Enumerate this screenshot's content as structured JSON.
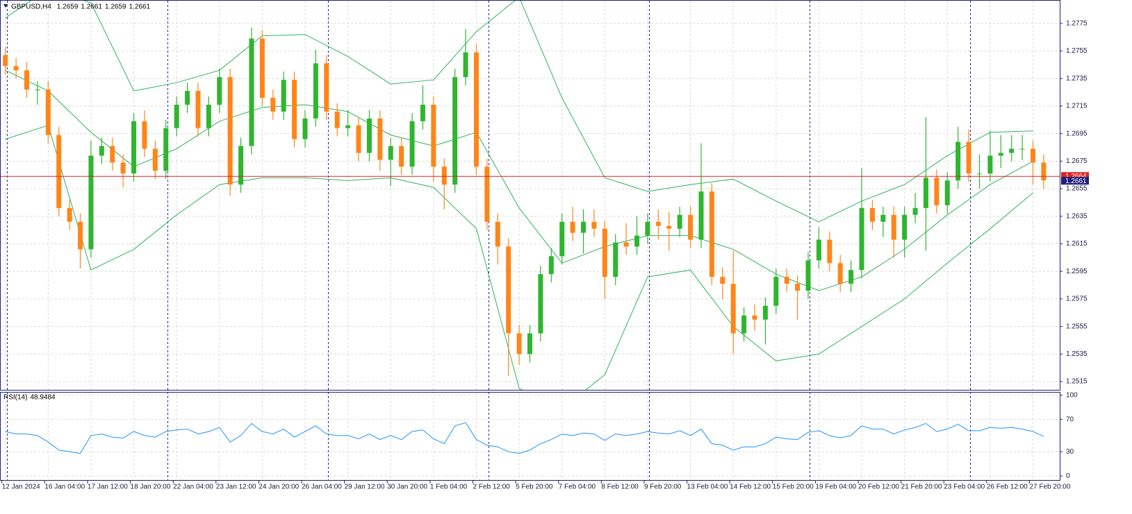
{
  "chart_data": [
    {
      "type": "candlestick",
      "title": "GBPUSD,H4",
      "ohlc_header": [
        1.2659,
        1.2661,
        1.2659,
        1.2661
      ],
      "xlim": [
        -0.5,
        98.5
      ],
      "ylim": [
        1.2509,
        1.2791
      ],
      "yticks": [
        1.2775,
        1.2755,
        1.2735,
        1.2715,
        1.2695,
        1.2675,
        1.2655,
        1.2635,
        1.2615,
        1.2595,
        1.2575,
        1.2555,
        1.2535,
        1.2515
      ],
      "xticks": [
        {
          "value": 0,
          "label": "12 Jan 2024"
        },
        {
          "value": 4,
          "label": "16 Jan 04:00"
        },
        {
          "value": 8,
          "label": "17 Jan 12:00"
        },
        {
          "value": 12,
          "label": "18 Jan 20:00"
        },
        {
          "value": 16,
          "label": "22 Jan 04:00"
        },
        {
          "value": 20,
          "label": "23 Jan 12:00"
        },
        {
          "value": 24,
          "label": "24 Jan 20:00"
        },
        {
          "value": 28,
          "label": "26 Jan 04:00"
        },
        {
          "value": 32,
          "label": "29 Jan 12:00"
        },
        {
          "value": 36,
          "label": "30 Jan 20:00"
        },
        {
          "value": 40,
          "label": "1 Feb 04:00"
        },
        {
          "value": 44,
          "label": "2 Feb 12:00"
        },
        {
          "value": 48,
          "label": "5 Feb 20:00"
        },
        {
          "value": 52,
          "label": "7 Feb 04:00"
        },
        {
          "value": 56,
          "label": "8 Feb 12:00"
        },
        {
          "value": 60,
          "label": "9 Feb 20:00"
        },
        {
          "value": 64,
          "label": "13 Feb 04:00"
        },
        {
          "value": 68,
          "label": "14 Feb 12:00"
        },
        {
          "value": 72,
          "label": "15 Feb 20:00"
        },
        {
          "value": 76,
          "label": "19 Feb 04:00"
        },
        {
          "value": 80,
          "label": "20 Feb 12:00"
        },
        {
          "value": 84,
          "label": "21 Feb 20:00"
        },
        {
          "value": 88,
          "label": "23 Feb 04:00"
        },
        {
          "value": 92,
          "label": "26 Feb 12:00"
        },
        {
          "value": 96,
          "label": "27 Feb 20:00"
        }
      ],
      "grid": true,
      "up_color": "#2fb52f",
      "down_color": "#ff8518",
      "open": [
        1.2752,
        1.2744,
        1.2741,
        1.2727,
        1.2727,
        1.2694,
        1.2641,
        1.2631,
        1.2611,
        1.2679,
        1.2686,
        1.2674,
        1.2666,
        1.2704,
        1.2684,
        1.2668,
        1.2699,
        1.2716,
        1.2726,
        1.2699,
        1.2716,
        1.2736,
        1.2658,
        1.2686,
        1.2764,
        1.2721,
        1.2711,
        1.2734,
        1.2691,
        1.2706,
        1.2746,
        1.2711,
        1.2699,
        1.2701,
        1.2681,
        1.2706,
        1.2676,
        1.2686,
        1.2671,
        1.2704,
        1.2716,
        1.2671,
        1.2658,
        1.2736,
        1.2754,
        1.2671,
        1.2631,
        1.2613,
        1.255,
        1.2535,
        1.255,
        1.2593,
        1.2606,
        1.2631,
        1.2623,
        1.2631,
        1.2626,
        1.2591,
        1.2616,
        1.2613,
        1.2621,
        1.2631,
        1.2628,
        1.2626,
        1.2636,
        1.2618,
        1.2653,
        1.2591,
        1.2586,
        1.255,
        1.2563,
        1.256,
        1.257,
        1.2591,
        1.2586,
        1.2581,
        1.2603,
        1.2618,
        1.2601,
        1.2586,
        1.2596,
        1.2641,
        1.2631,
        1.2636,
        1.2618,
        1.2636,
        1.2641,
        1.2663,
        1.2643,
        1.2661,
        1.2689,
        1.2666,
        1.2666,
        1.2679,
        1.2681,
        1.2684,
        1.2684,
        1.2674
      ],
      "high": [
        1.2758,
        1.275,
        1.2747,
        1.2733,
        1.2733,
        1.27,
        1.2647,
        1.2637,
        1.269,
        1.2692,
        1.2692,
        1.268,
        1.271,
        1.2712,
        1.269,
        1.2705,
        1.2722,
        1.2732,
        1.2732,
        1.2722,
        1.2742,
        1.2742,
        1.2692,
        1.2772,
        1.277,
        1.2727,
        1.274,
        1.274,
        1.2712,
        1.2756,
        1.2752,
        1.2717,
        1.2712,
        1.2707,
        1.2712,
        1.2712,
        1.2692,
        1.2692,
        1.271,
        1.273,
        1.2722,
        1.2677,
        1.2742,
        1.2771,
        1.276,
        1.2677,
        1.2637,
        1.2619,
        1.2556,
        1.2556,
        1.2599,
        1.2612,
        1.2637,
        1.2642,
        1.264,
        1.264,
        1.2632,
        1.2622,
        1.263,
        1.2635,
        1.2637,
        1.264,
        1.2638,
        1.2642,
        1.2642,
        1.2688,
        1.2659,
        1.2598,
        1.261,
        1.2569,
        1.2571,
        1.2576,
        1.2597,
        1.2597,
        1.2592,
        1.2609,
        1.2627,
        1.2624,
        1.2607,
        1.2603,
        1.267,
        1.2647,
        1.2642,
        1.2642,
        1.2642,
        1.2652,
        1.2707,
        1.2669,
        1.2667,
        1.27,
        1.2698,
        1.268,
        1.2697,
        1.2694,
        1.2694,
        1.2694,
        1.269,
        1.268
      ],
      "low": [
        1.2738,
        1.2735,
        1.2721,
        1.2716,
        1.2688,
        1.2635,
        1.2625,
        1.2597,
        1.2605,
        1.2673,
        1.2668,
        1.2656,
        1.266,
        1.2678,
        1.2662,
        1.2662,
        1.2693,
        1.271,
        1.2693,
        1.2693,
        1.271,
        1.265,
        1.2652,
        1.268,
        1.2715,
        1.2705,
        1.2705,
        1.2685,
        1.2685,
        1.27,
        1.2705,
        1.2693,
        1.2693,
        1.2675,
        1.2675,
        1.2668,
        1.2657,
        1.2665,
        1.2665,
        1.2698,
        1.266,
        1.264,
        1.2652,
        1.273,
        1.2665,
        1.2625,
        1.26,
        1.2519,
        1.2527,
        1.2529,
        1.2544,
        1.2587,
        1.26,
        1.2617,
        1.2608,
        1.262,
        1.2575,
        1.2585,
        1.2607,
        1.2607,
        1.2615,
        1.2618,
        1.261,
        1.262,
        1.2612,
        1.2612,
        1.2585,
        1.2575,
        1.2535,
        1.2544,
        1.2552,
        1.2542,
        1.2564,
        1.258,
        1.256,
        1.2575,
        1.2597,
        1.2595,
        1.258,
        1.258,
        1.259,
        1.2625,
        1.262,
        1.2605,
        1.2605,
        1.263,
        1.261,
        1.2637,
        1.2637,
        1.2655,
        1.266,
        1.2655,
        1.266,
        1.267,
        1.2675,
        1.2676,
        1.2658,
        1.2655
      ],
      "close": [
        1.2744,
        1.2741,
        1.2727,
        1.2727,
        1.2694,
        1.2641,
        1.2631,
        1.2611,
        1.2679,
        1.2686,
        1.2674,
        1.2666,
        1.2704,
        1.2684,
        1.2668,
        1.2699,
        1.2716,
        1.2726,
        1.2699,
        1.2716,
        1.2736,
        1.2658,
        1.2686,
        1.2764,
        1.2721,
        1.2711,
        1.2734,
        1.2691,
        1.2706,
        1.2746,
        1.2711,
        1.2699,
        1.2701,
        1.2681,
        1.2706,
        1.2676,
        1.2686,
        1.2671,
        1.2704,
        1.2716,
        1.2671,
        1.2658,
        1.2736,
        1.2754,
        1.2671,
        1.2631,
        1.2613,
        1.255,
        1.2535,
        1.255,
        1.2593,
        1.2606,
        1.2631,
        1.2623,
        1.2631,
        1.2626,
        1.2591,
        1.2616,
        1.2613,
        1.2621,
        1.2631,
        1.2628,
        1.2626,
        1.2636,
        1.2618,
        1.2653,
        1.2591,
        1.2586,
        1.255,
        1.2563,
        1.256,
        1.257,
        1.2591,
        1.2586,
        1.2581,
        1.2603,
        1.2618,
        1.2601,
        1.2586,
        1.2596,
        1.2641,
        1.2631,
        1.2636,
        1.2618,
        1.2636,
        1.2641,
        1.2663,
        1.2643,
        1.2661,
        1.2689,
        1.2666,
        1.2666,
        1.2679,
        1.2681,
        1.2684,
        1.2684,
        1.2674,
        1.2661
      ],
      "bands": {
        "color": "#2db35a",
        "x": [
          0,
          4,
          8,
          12,
          16,
          20,
          24,
          28,
          32,
          36,
          40,
          44,
          48,
          52,
          56,
          60,
          64,
          68,
          72,
          76,
          80,
          84,
          88,
          92,
          96
        ],
        "upper": [
          1.2779,
          1.28,
          1.279,
          1.2726,
          1.2732,
          1.2741,
          1.2766,
          1.2767,
          1.2751,
          1.2731,
          1.2734,
          1.2769,
          1.2794,
          1.2721,
          1.2663,
          1.2653,
          1.2658,
          1.2662,
          1.2646,
          1.2631,
          1.2646,
          1.2658,
          1.2679,
          1.2696,
          1.2697
        ],
        "middle": [
          1.2741,
          1.2726,
          1.2696,
          1.2671,
          1.2684,
          1.2704,
          1.2714,
          1.2716,
          1.2711,
          1.2694,
          1.2686,
          1.2696,
          1.2641,
          1.2601,
          1.2613,
          1.2621,
          1.2621,
          1.2611,
          1.2593,
          1.2581,
          1.2591,
          1.2611,
          1.2636,
          1.2658,
          1.2675
        ],
        "lower": [
          1.2691,
          1.2701,
          1.2596,
          1.2611,
          1.2636,
          1.2658,
          1.2663,
          1.2663,
          1.2661,
          1.2663,
          1.2656,
          1.2626,
          1.251,
          1.2495,
          1.252,
          1.2591,
          1.2596,
          1.2555,
          1.253,
          1.2535,
          1.2555,
          1.2575,
          1.2601,
          1.2626,
          1.2652
        ]
      },
      "bid": 1.2661,
      "ask": 1.2664
    },
    {
      "type": "line",
      "title": "RSI(14)",
      "color": "#1e90ff",
      "ylim": [
        -5,
        104
      ],
      "yticks": [
        100,
        70,
        30,
        0
      ],
      "values": [
        55,
        52,
        52,
        50,
        42,
        32,
        30,
        28,
        50,
        52,
        48,
        47,
        55,
        50,
        48,
        55,
        57,
        58,
        52,
        55,
        60,
        42,
        50,
        65,
        55,
        52,
        58,
        48,
        55,
        62,
        52,
        50,
        50,
        46,
        52,
        45,
        50,
        45,
        55,
        57,
        46,
        40,
        62,
        66,
        45,
        38,
        36,
        30,
        28,
        32,
        40,
        45,
        52,
        50,
        53,
        52,
        44,
        52,
        50,
        52,
        55,
        53,
        52,
        56,
        50,
        58,
        40,
        38,
        32,
        36,
        36,
        40,
        48,
        46,
        45,
        54,
        56,
        50,
        47,
        50,
        62,
        58,
        58,
        52,
        57,
        60,
        65,
        55,
        58,
        64,
        56,
        56,
        60,
        59,
        60,
        58,
        55,
        48.9484
      ]
    }
  ]
}
